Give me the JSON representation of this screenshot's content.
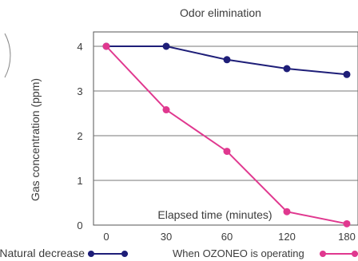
{
  "chart_data": {
    "type": "line",
    "title": "Odor elimination",
    "xlabel": "Elapsed time (minutes)",
    "ylabel": "Gas concentration (ppm)",
    "x": [
      0,
      30,
      60,
      120,
      180
    ],
    "x_tick_labels": [
      "0",
      "30",
      "60",
      "120",
      "180"
    ],
    "y_ticks": [
      0,
      1,
      2,
      3,
      4
    ],
    "y_tick_labels": [
      "0",
      "1",
      "2",
      "3",
      "4"
    ],
    "ylim": [
      0,
      4.3
    ],
    "grid": "horizontal",
    "legend_position": "bottom",
    "series": [
      {
        "name": "Natural decrease",
        "color": "#1e1e78",
        "values": [
          4.0,
          4.0,
          3.7,
          3.5,
          3.37
        ]
      },
      {
        "name": "When OZONEO is operating",
        "color": "#e0388f",
        "values": [
          4.0,
          2.58,
          1.65,
          0.3,
          0.03
        ]
      }
    ]
  }
}
